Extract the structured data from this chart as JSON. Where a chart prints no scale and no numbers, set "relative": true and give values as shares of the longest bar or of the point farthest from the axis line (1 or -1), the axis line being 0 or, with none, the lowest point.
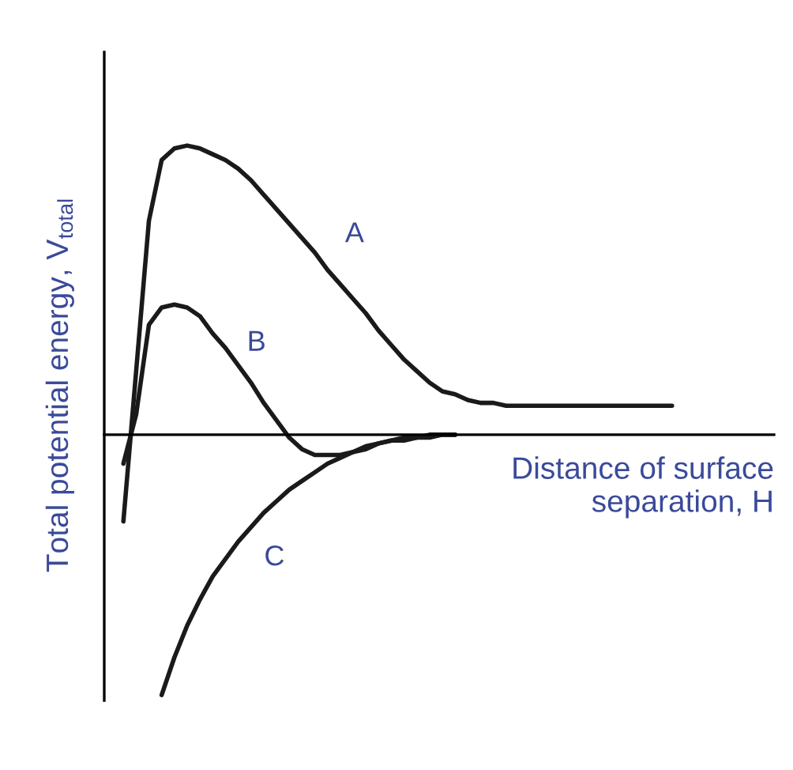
{
  "chart_data": {
    "type": "line",
    "relative": true,
    "xlabel": "Distance of surface\nseparation, H",
    "ylabel": "Total potential energy, V$_{total}$",
    "marker": "none",
    "line_style": "solid",
    "categories": [
      null,
      null,
      null,
      null,
      null,
      null,
      null,
      null,
      null,
      null,
      null,
      null,
      null,
      null,
      null,
      null,
      null,
      null,
      null,
      null,
      null,
      null,
      null,
      null,
      null,
      null,
      null,
      null,
      null,
      null,
      null,
      null,
      null,
      null,
      null,
      null,
      null,
      null,
      null,
      null,
      null,
      null,
      null,
      null
    ],
    "series": [
      {
        "name": "A",
        "color": "#1a1a1a",
        "values": [
          -0.3,
          0.22,
          0.74,
          0.95,
          0.99,
          1,
          0.99,
          0.97,
          0.95,
          0.92,
          0.88,
          0.83,
          0.78,
          0.73,
          0.68,
          0.63,
          0.57,
          0.52,
          0.47,
          0.42,
          0.36,
          0.31,
          0.26,
          0.22,
          0.18,
          0.15,
          0.14,
          0.12,
          0.11,
          0.11,
          0.1,
          0.1,
          0.1,
          0.1,
          0.1,
          0.1,
          0.1,
          0.1,
          0.1,
          0.1,
          0.1,
          0.1,
          0.1,
          0.1
        ]
      },
      {
        "name": "B",
        "color": "#1a1a1a",
        "values": [
          -0.1,
          0.07,
          0.38,
          0.44,
          0.45,
          0.44,
          0.41,
          0.35,
          0.3,
          0.24,
          0.18,
          0.11,
          0.05,
          -0.01,
          -0.05,
          -0.07,
          -0.07,
          -0.07,
          -0.06,
          -0.04,
          -0.03,
          -0.02,
          -0.01,
          -0.01,
          0,
          0,
          0,
          null,
          null,
          null,
          null,
          null,
          null,
          null,
          null,
          null,
          null,
          null,
          null,
          null,
          null,
          null,
          null,
          null
        ]
      },
      {
        "name": "C",
        "color": "#1a1a1a",
        "values": [
          null,
          null,
          null,
          -0.9,
          -0.77,
          -0.66,
          -0.57,
          -0.49,
          -0.43,
          -0.37,
          -0.32,
          -0.27,
          -0.23,
          -0.19,
          -0.16,
          -0.13,
          -0.1,
          -0.08,
          -0.06,
          -0.05,
          -0.03,
          -0.02,
          -0.02,
          -0.01,
          -0.01,
          0,
          0,
          null,
          null,
          null,
          null,
          null,
          null,
          null,
          null,
          null,
          null,
          null,
          null,
          null,
          null,
          null,
          null,
          null
        ]
      }
    ]
  }
}
